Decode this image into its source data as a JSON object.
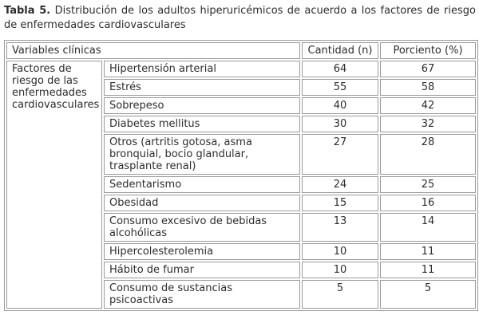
{
  "caption": {
    "label": "Tabla 5.",
    "text": "Distribución de los adultos hiperuricémicos de acuerdo a los factores de riesgo de enfermedades cardiovasculares"
  },
  "table": {
    "header": {
      "variables": "Variables clínicas",
      "cantidad": "Cantidad (n)",
      "porciento": "Porciento (%)"
    },
    "group_label": "Factores de riesgo de las enfermedades cardiovasculares",
    "rows": [
      {
        "factor": "Hipertensión arterial",
        "n": "64",
        "pct": "67"
      },
      {
        "factor": "Estrés",
        "n": "55",
        "pct": "58"
      },
      {
        "factor": "Sobrepeso",
        "n": "40",
        "pct": "42"
      },
      {
        "factor": "Diabetes mellitus",
        "n": "30",
        "pct": "32"
      },
      {
        "factor": "Otros (artritis gotosa, asma bronquial, bocio glandular, trasplante renal)",
        "n": "27",
        "pct": "28"
      },
      {
        "factor": "Sedentarismo",
        "n": "24",
        "pct": "25"
      },
      {
        "factor": "Obesidad",
        "n": "15",
        "pct": "16"
      },
      {
        "factor": "Consumo excesivo de bebidas alcohólicas",
        "n": "13",
        "pct": "14"
      },
      {
        "factor": "Hipercolesterolemia",
        "n": "10",
        "pct": "11"
      },
      {
        "factor": "Hábito de fumar",
        "n": "10",
        "pct": "11"
      },
      {
        "factor": "Consumo de sustancias psicoactivas",
        "n": "5",
        "pct": "5"
      }
    ],
    "colors": {
      "border": "#9a9a9a",
      "text": "#2d2d2d",
      "background": "#ffffff"
    }
  },
  "chart_data": {
    "type": "table",
    "title": "Tabla 5. Distribución de los adultos hiperuricémicos de acuerdo a los factores de riesgo de enfermedades cardiovasculares",
    "columns": [
      "Variables clínicas",
      "Cantidad (n)",
      "Porciento (%)"
    ],
    "group": "Factores de riesgo de las enfermedades cardiovasculares",
    "categories": [
      "Hipertensión arterial",
      "Estrés",
      "Sobrepeso",
      "Diabetes mellitus",
      "Otros (artritis gotosa, asma bronquial, bocio glandular, trasplante renal)",
      "Sedentarismo",
      "Obesidad",
      "Consumo excesivo de bebidas alcohólicas",
      "Hipercolesterolemia",
      "Hábito de fumar",
      "Consumo de sustancias psicoactivas"
    ],
    "series": [
      {
        "name": "Cantidad (n)",
        "values": [
          64,
          55,
          40,
          30,
          27,
          24,
          15,
          13,
          10,
          10,
          5
        ]
      },
      {
        "name": "Porciento (%)",
        "values": [
          67,
          58,
          42,
          32,
          28,
          25,
          16,
          14,
          11,
          11,
          5
        ]
      }
    ]
  }
}
